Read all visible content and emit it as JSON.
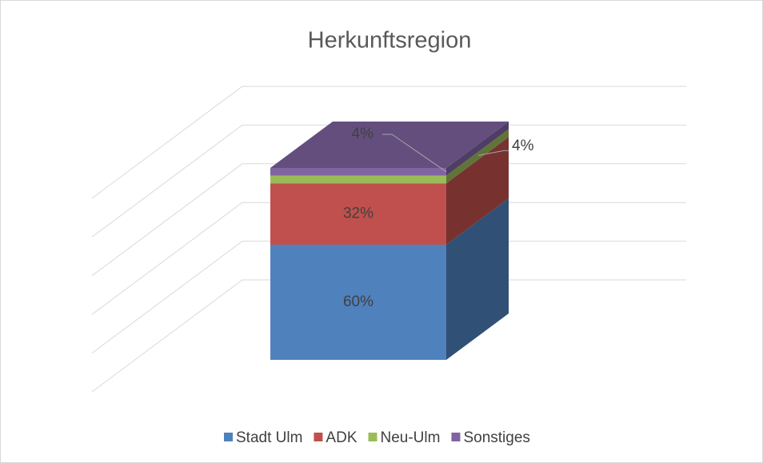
{
  "chart_data": {
    "type": "bar3d_stacked",
    "title": "Herkunftsregion",
    "categories": [
      null
    ],
    "series": [
      {
        "name": "Stadt Ulm",
        "color": "#4f81bd",
        "values": [
          60
        ],
        "value_labels": [
          "60%"
        ]
      },
      {
        "name": "ADK",
        "color": "#c0504d",
        "values": [
          32
        ],
        "value_labels": [
          "32%"
        ]
      },
      {
        "name": "Neu-Ulm",
        "color": "#9bbb59",
        "values": [
          4
        ],
        "value_labels": [
          "4%"
        ]
      },
      {
        "name": "Sonstiges",
        "color": "#8064a2",
        "values": [
          4
        ],
        "value_labels": [
          "4%"
        ]
      }
    ],
    "ylim": [
      0,
      100
    ],
    "yticks": [
      0,
      20,
      40,
      60,
      80,
      100
    ],
    "grid": true,
    "legend": "bottom"
  }
}
